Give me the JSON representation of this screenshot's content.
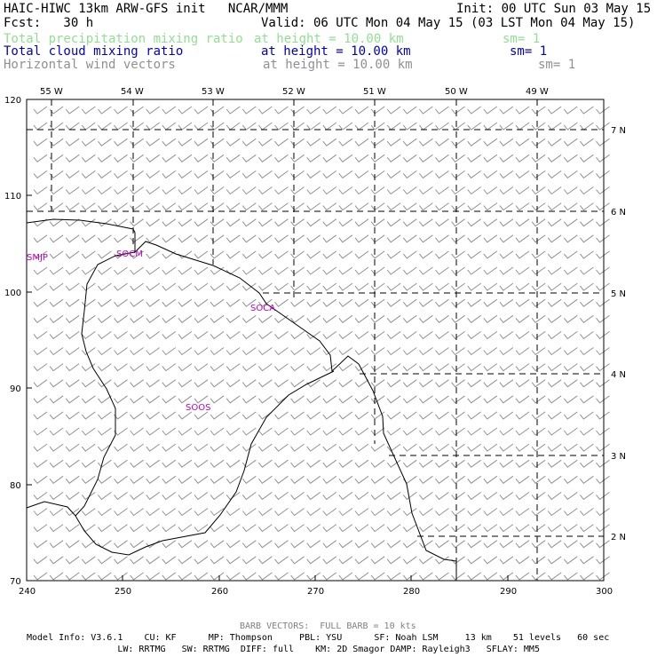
{
  "header": {
    "title": "HAIC-HIWC 13km ARW-GFS init   NCAR/MMM",
    "init": "Init: 00 UTC Sun 03 May 15",
    "fcst": "Fcst:   30 h",
    "valid": "Valid: 06 UTC Mon 04 May 15 (03 LST Mon 04 May 15)",
    "fields": [
      {
        "name": "Total precipitation mixing ratio",
        "height": "at height = 10.00 km",
        "sm": "sm= 1",
        "color": "#90e090"
      },
      {
        "name": "Total cloud mixing ratio",
        "height": "at height = 10.00 km",
        "sm": "sm= 1",
        "color": "#0000c0"
      },
      {
        "name": "Horizontal wind vectors",
        "height": "at height = 10.00 km",
        "sm": "sm= 1",
        "color": "#909090"
      }
    ]
  },
  "map": {
    "top_lon_labels": [
      "55 W",
      "54 W",
      "53 W",
      "52 W",
      "51 W",
      "50 W",
      "49 W"
    ],
    "right_lat_labels": [
      "7 N",
      "6 N",
      "5 N",
      "4 N",
      "3 N",
      "2 N"
    ],
    "left_y_labels": [
      "120",
      "110",
      "100",
      "90",
      "80",
      "70"
    ],
    "bottom_x_labels": [
      "240",
      "250",
      "260",
      "270",
      "280",
      "290",
      "300"
    ],
    "stations": [
      "SMJP",
      "SOCM",
      "SOCA",
      "SOOS"
    ],
    "wind_barb_color": "#909090",
    "coast_color": "#000000",
    "station_color": "#c000c0"
  },
  "footer": {
    "barb": "BARB VECTORS:  FULL BARB = 10 kts",
    "line1": "Model Info: V3.6.1    CU: KF      MP: Thompson     PBL: YSU      SF: Noah LSM     13 km    51 levels   60 sec",
    "line2": "                 LW: RRTMG   SW: RRTMG  DIFF: full    KM: 2D Smagor DAMP: Rayleigh3   SFLAY: MM5"
  }
}
